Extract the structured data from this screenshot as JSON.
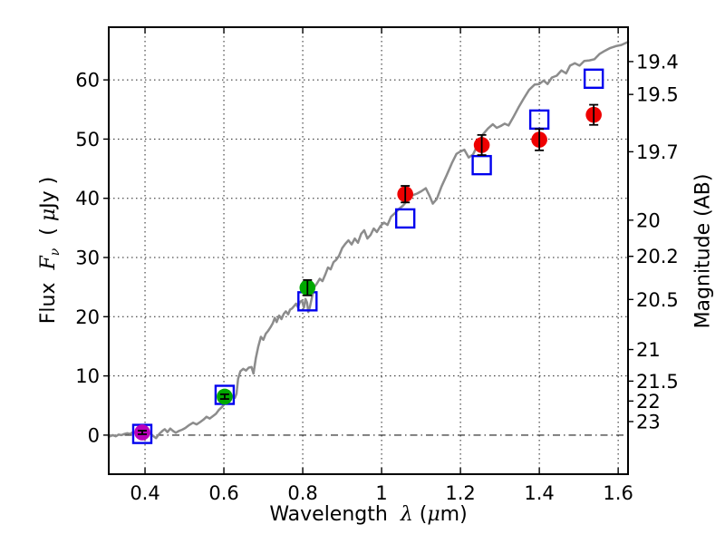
{
  "labels": {
    "x_word": "Wavelength",
    "x_symbol": "λ",
    "x_unit_open": " (",
    "x_unit_mu": "μ",
    "x_unit_rest": "m)",
    "y_left_word": "Flux",
    "y_left_symbol": "F",
    "y_left_sub": "ν",
    "y_left_unit_open": "( ",
    "y_left_unit_mu": "μ",
    "y_left_unit_rest": "Jy )",
    "y_right": "Magnitude (AB)"
  },
  "chart_data": {
    "type": "line",
    "title": "",
    "xlabel": "Wavelength λ (μm)",
    "ylabel_left": "Flux Fν ( μJy )",
    "ylabel_right": "Magnitude (AB)",
    "background": "#ffffff",
    "x_range": [
      0.308,
      1.625
    ],
    "y_range": [
      -6.6,
      68.9
    ],
    "x_ticks": {
      "values": [
        0.4,
        0.6,
        0.8,
        1.0,
        1.2,
        1.4,
        1.6
      ],
      "labels": [
        "0.4",
        "0.6",
        "0.8",
        "1",
        "1.2",
        "1.4",
        "1.6"
      ]
    },
    "y_ticks_left": {
      "values": [
        0,
        10,
        20,
        30,
        40,
        50,
        60
      ],
      "labels": [
        "0",
        "10",
        "20",
        "30",
        "40",
        "50",
        "60"
      ]
    },
    "y_ticks_right": {
      "values": [
        19.4,
        19.5,
        19.7,
        20,
        20.2,
        20.5,
        21,
        21.5,
        22,
        23
      ],
      "labels": [
        "19.4",
        "19.5",
        "19.7",
        "20",
        "20.2",
        "20.5",
        "21",
        "21.5",
        "22",
        "23"
      ],
      "ab_zero_point_ujy": 23.9
    },
    "grid": {
      "x_values": [
        0.4,
        0.6,
        0.8,
        1.0,
        1.2,
        1.4,
        1.6
      ],
      "y_values": [
        10,
        20,
        30,
        40,
        50,
        60
      ],
      "style": "dotted",
      "zero_line_value": 0,
      "zero_line_style": "dashdot",
      "color": "#222222"
    },
    "model_spectrum": {
      "name": "model-spectrum",
      "color": "#8c8c8c",
      "line_width": 2.5,
      "x": [
        0.308,
        0.318,
        0.326,
        0.333,
        0.34,
        0.348,
        0.355,
        0.362,
        0.37,
        0.377,
        0.385,
        0.393,
        0.4,
        0.407,
        0.413,
        0.42,
        0.428,
        0.436,
        0.444,
        0.45,
        0.457,
        0.464,
        0.471,
        0.478,
        0.486,
        0.494,
        0.502,
        0.512,
        0.522,
        0.531,
        0.54,
        0.548,
        0.556,
        0.564,
        0.572,
        0.58,
        0.588,
        0.596,
        0.603,
        0.61,
        0.616,
        0.622,
        0.628,
        0.632,
        0.636,
        0.642,
        0.649,
        0.656,
        0.663,
        0.67,
        0.675,
        0.681,
        0.687,
        0.694,
        0.7,
        0.706,
        0.712,
        0.718,
        0.724,
        0.729,
        0.734,
        0.74,
        0.746,
        0.752,
        0.757,
        0.763,
        0.768,
        0.773,
        0.778,
        0.783,
        0.788,
        0.793,
        0.798,
        0.803,
        0.807,
        0.811,
        0.814,
        0.818,
        0.823,
        0.829,
        0.836,
        0.843,
        0.85,
        0.857,
        0.864,
        0.871,
        0.878,
        0.885,
        0.892,
        0.9,
        0.908,
        0.916,
        0.924,
        0.932,
        0.94,
        0.948,
        0.956,
        0.964,
        0.972,
        0.98,
        0.988,
        0.997,
        1.006,
        1.015,
        1.024,
        1.034,
        1.044,
        1.055,
        1.066,
        1.078,
        1.09,
        1.101,
        1.112,
        1.121,
        1.13,
        1.14,
        1.152,
        1.165,
        1.178,
        1.19,
        1.2,
        1.21,
        1.221,
        1.232,
        1.244,
        1.257,
        1.27,
        1.282,
        1.292,
        1.302,
        1.312,
        1.322,
        1.334,
        1.347,
        1.36,
        1.374,
        1.388,
        1.4,
        1.411,
        1.421,
        1.432,
        1.444,
        1.456,
        1.468,
        1.478,
        1.49,
        1.502,
        1.514,
        1.527,
        1.54,
        1.553,
        1.566,
        1.58,
        1.594,
        1.608,
        1.618,
        1.625
      ],
      "y": [
        -0.3,
        0.0,
        -0.2,
        0.1,
        0.0,
        0.2,
        0.3,
        0.2,
        0.5,
        0.3,
        0.4,
        0.5,
        0.6,
        0.5,
        0.3,
        -0.1,
        -0.5,
        0.2,
        0.7,
        1.0,
        0.5,
        1.1,
        0.7,
        0.4,
        0.7,
        0.9,
        1.2,
        1.7,
        2.1,
        1.8,
        2.2,
        2.6,
        3.1,
        2.8,
        3.2,
        3.6,
        4.3,
        4.8,
        5.4,
        6.0,
        6.4,
        6.6,
        6.3,
        7.0,
        9.5,
        10.8,
        11.2,
        10.9,
        11.4,
        11.5,
        10.4,
        13.0,
        14.9,
        16.6,
        16.1,
        17.1,
        17.6,
        18.2,
        18.9,
        19.8,
        19.1,
        20.2,
        19.6,
        20.5,
        20.9,
        20.4,
        21.2,
        21.4,
        21.8,
        22.2,
        21.6,
        22.5,
        22.7,
        21.5,
        23.0,
        22.4,
        20.8,
        21.6,
        23.2,
        25.0,
        25.6,
        26.4,
        26.0,
        27.1,
        28.3,
        28.0,
        29.2,
        29.6,
        30.3,
        31.6,
        32.3,
        32.9,
        32.2,
        33.2,
        32.5,
        34.0,
        34.6,
        33.2,
        33.8,
        34.9,
        34.3,
        35.3,
        35.9,
        35.5,
        36.9,
        37.5,
        38.2,
        38.8,
        39.7,
        40.5,
        40.8,
        41.2,
        41.7,
        40.5,
        39.1,
        39.9,
        42.0,
        43.9,
        45.9,
        47.5,
        47.9,
        48.2,
        46.9,
        47.4,
        49.1,
        50.8,
        51.8,
        52.5,
        51.9,
        52.2,
        52.6,
        52.3,
        53.7,
        55.3,
        56.8,
        58.3,
        59.2,
        59.3,
        59.9,
        59.3,
        60.4,
        60.7,
        61.6,
        61.1,
        62.4,
        62.8,
        62.4,
        63.2,
        63.3,
        63.5,
        64.4,
        64.9,
        65.4,
        65.7,
        65.9,
        66.2,
        66.4
      ]
    },
    "model_photometry": {
      "name": "model-photometry",
      "marker": "open-square",
      "color": "#0000ee",
      "marker_size": 20,
      "points": [
        {
          "x": 0.393,
          "y": 0.2
        },
        {
          "x": 0.602,
          "y": 6.8
        },
        {
          "x": 0.812,
          "y": 22.6
        },
        {
          "x": 1.06,
          "y": 36.6
        },
        {
          "x": 1.254,
          "y": 45.6
        },
        {
          "x": 1.4,
          "y": 53.3
        },
        {
          "x": 1.538,
          "y": 60.2
        }
      ]
    },
    "observed_photometry": {
      "name": "observed-photometry",
      "marker": "filled-circle",
      "marker_radius": 8.8,
      "errorbar_color": "#000000",
      "points": [
        {
          "x": 0.393,
          "y": 0.45,
          "yerr": 0.3,
          "color": "#bb00bb"
        },
        {
          "x": 0.602,
          "y": 6.5,
          "yerr": 0.4,
          "color": "#00a800"
        },
        {
          "x": 0.812,
          "y": 24.9,
          "yerr": 1.3,
          "color": "#00a800"
        },
        {
          "x": 1.06,
          "y": 40.7,
          "yerr": 1.4,
          "color": "#ee0000"
        },
        {
          "x": 1.254,
          "y": 49.0,
          "yerr": 1.7,
          "color": "#ee0000"
        },
        {
          "x": 1.4,
          "y": 49.9,
          "yerr": 1.8,
          "color": "#ee0000"
        },
        {
          "x": 1.538,
          "y": 54.1,
          "yerr": 1.7,
          "color": "#ee0000"
        }
      ]
    }
  }
}
